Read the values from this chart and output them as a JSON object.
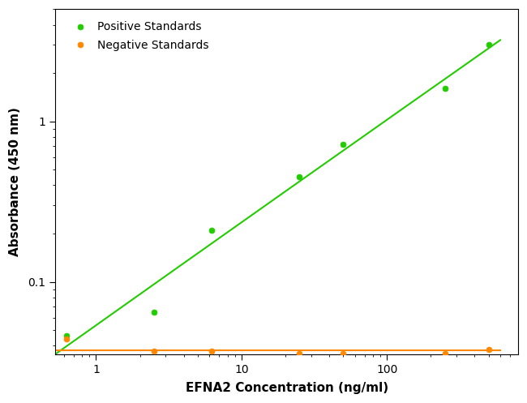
{
  "positive_x": [
    0.625,
    2.5,
    6.25,
    25,
    50,
    250,
    500
  ],
  "positive_y": [
    0.046,
    0.065,
    0.21,
    0.45,
    0.72,
    1.6,
    3.0
  ],
  "negative_x": [
    0.625,
    2.5,
    6.25,
    25,
    50,
    250,
    500
  ],
  "negative_y": [
    0.044,
    0.037,
    0.037,
    0.036,
    0.036,
    0.036,
    0.038
  ],
  "positive_color": "#22cc00",
  "negative_color": "#ff8800",
  "positive_label": "Positive Standards",
  "negative_label": "Negative Standards",
  "xlabel": "EFNA2 Concentration (ng/ml)",
  "ylabel": "Absorbance (450 nm)",
  "xlim_log": [
    -0.28,
    2.9
  ],
  "ylim_log": [
    -1.45,
    0.7
  ],
  "background_color": "#ffffff",
  "marker": "o",
  "marker_size": 5,
  "xtick_labels": [
    "1",
    "10",
    "100"
  ],
  "xtick_values": [
    1,
    10,
    100
  ],
  "ytick_labels": [
    "0.1",
    "1"
  ],
  "ytick_values": [
    0.1,
    1.0
  ],
  "legend_fontsize": 10,
  "axis_label_fontsize": 11,
  "tick_fontsize": 10
}
